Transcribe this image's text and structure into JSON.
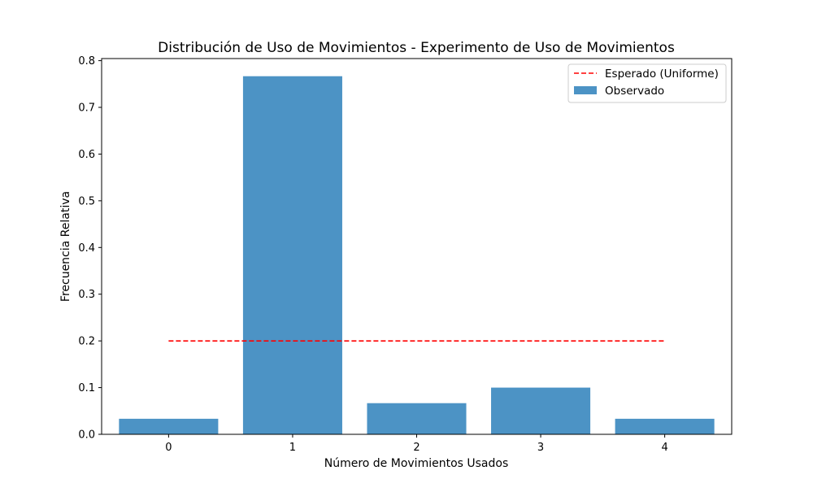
{
  "chart_data": {
    "type": "bar",
    "title": "Distribución de Uso de Movimientos - Experimento de Uso de Movimientos",
    "xlabel": "Número de Movimientos Usados",
    "ylabel": "Frecuencia Relativa",
    "categories": [
      "0",
      "1",
      "2",
      "3",
      "4"
    ],
    "x": [
      0,
      1,
      2,
      3,
      4
    ],
    "ylim": [
      0,
      0.8
    ],
    "yticks": [
      0.0,
      0.1,
      0.2,
      0.3,
      0.4,
      0.5,
      0.6,
      0.7,
      0.8
    ],
    "ytick_labels": [
      "0.0",
      "0.1",
      "0.2",
      "0.3",
      "0.4",
      "0.5",
      "0.6",
      "0.7",
      "0.8"
    ],
    "grid": false,
    "legend_position": "top-right",
    "series": [
      {
        "name": "Observado",
        "kind": "bar",
        "color": "#4c93c5",
        "values": [
          0.0333,
          0.7667,
          0.0667,
          0.1,
          0.0333
        ]
      },
      {
        "name": "Esperado (Uniforme)",
        "kind": "line",
        "style": "dashed",
        "color": "#ff0000",
        "x": [
          0,
          4
        ],
        "values": [
          0.2,
          0.2
        ]
      }
    ]
  }
}
